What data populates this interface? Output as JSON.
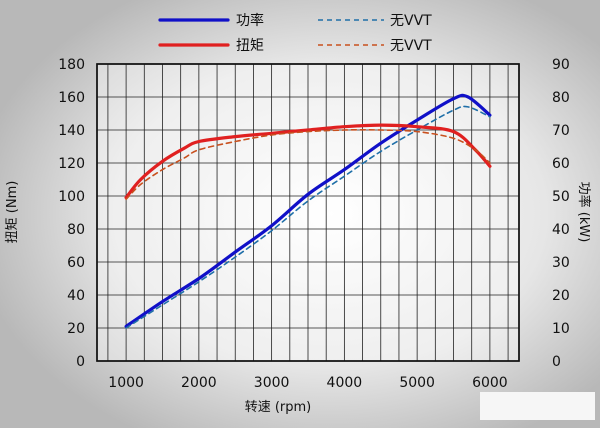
{
  "chart_data": {
    "type": "line",
    "xlabel": "转速 (rpm)",
    "ylabel_left": "扭矩 (Nm)",
    "ylabel_right": "功率 (kW)",
    "x_ticks": [
      1000,
      2000,
      3000,
      4000,
      5000,
      6000
    ],
    "xlim": [
      600,
      6400
    ],
    "ylim_left": [
      0,
      180
    ],
    "ylim_right": [
      0,
      90
    ],
    "y_ticks_left": [
      0,
      20,
      40,
      60,
      80,
      100,
      120,
      140,
      160,
      180
    ],
    "y_ticks_right": [
      0,
      10,
      20,
      30,
      40,
      50,
      60,
      70,
      80,
      90
    ],
    "grid": true,
    "legend_position": "top",
    "series": [
      {
        "name": "功率",
        "axis": "right",
        "color": "#1010c8",
        "style": "solid",
        "x": [
          1000,
          1500,
          2000,
          2500,
          3000,
          3500,
          4000,
          4500,
          5000,
          5500,
          5700,
          6000
        ],
        "y": [
          10.5,
          18,
          25,
          33,
          41,
          50.5,
          58,
          66,
          73,
          79.5,
          80,
          74.5
        ]
      },
      {
        "name": "无VVT",
        "axis": "right",
        "color": "#1f6fa8",
        "style": "dashed",
        "x": [
          1000,
          1500,
          2000,
          2500,
          3000,
          3500,
          4000,
          4500,
          5000,
          5500,
          5700,
          6000
        ],
        "y": [
          10,
          17,
          24,
          31.5,
          39.5,
          48.5,
          56,
          63.5,
          70,
          76,
          77,
          74
        ]
      },
      {
        "name": "扭矩",
        "axis": "left",
        "color": "#e02020",
        "style": "solid",
        "x": [
          1000,
          1200,
          1500,
          1800,
          2000,
          2500,
          3000,
          3500,
          4000,
          4500,
          5000,
          5500,
          5800,
          6000
        ],
        "y": [
          99,
          110,
          121,
          129,
          133,
          136,
          138,
          140,
          142,
          143,
          142,
          139,
          128,
          118
        ]
      },
      {
        "name": "无VVT",
        "axis": "left",
        "color": "#c8501e",
        "style": "dashed",
        "x": [
          1000,
          1200,
          1500,
          1800,
          2000,
          2500,
          3000,
          3500,
          4000,
          4500,
          5000,
          5500,
          5800,
          6000
        ],
        "y": [
          98,
          107,
          116,
          123,
          128,
          133,
          137,
          139,
          140,
          140,
          139,
          135,
          128,
          120
        ]
      }
    ]
  }
}
